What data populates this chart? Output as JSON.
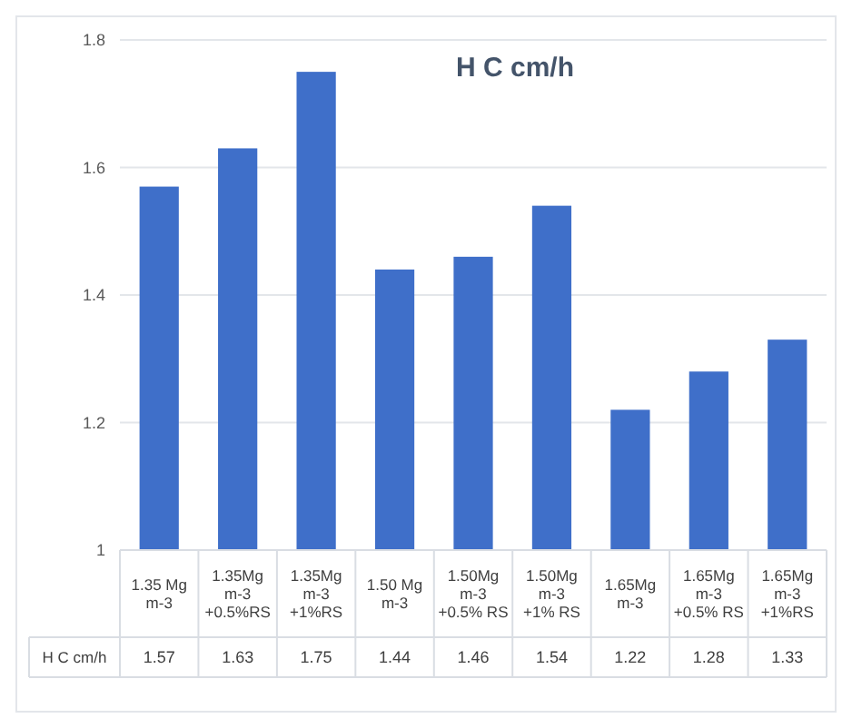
{
  "chart_data": {
    "type": "bar",
    "title": "H C cm/h",
    "categories": [
      "1.35 Mg m-3",
      "1.35Mg m-3\n+0.5%RS",
      "1.35Mg m-3\n+1%RS",
      "1.50 Mg m-3",
      "1.50Mg m-3\n+0.5% RS",
      "1.50Mg m-3\n+1% RS",
      "1.65Mg m-3",
      "1.65Mg m-3\n+0.5% RS",
      "1.65Mg m-3\n+1%RS"
    ],
    "series": [
      {
        "name": "H C cm/h",
        "color": "#3f6fc9",
        "values": [
          1.57,
          1.63,
          1.75,
          1.44,
          1.46,
          1.54,
          1.22,
          1.28,
          1.33
        ]
      }
    ],
    "ylim": [
      1,
      1.8
    ],
    "yticks": [
      1,
      1.2,
      1.4,
      1.6,
      1.8
    ],
    "grid": "y",
    "data_labels": true
  }
}
